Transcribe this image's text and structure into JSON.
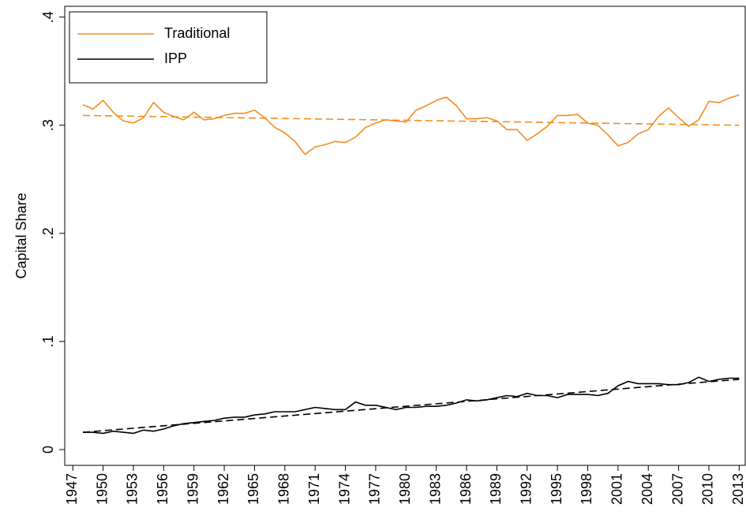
{
  "chart_data": {
    "type": "line",
    "y_label": "Capital Share",
    "x": [
      1948,
      1949,
      1950,
      1951,
      1952,
      1953,
      1954,
      1955,
      1956,
      1957,
      1958,
      1959,
      1960,
      1961,
      1962,
      1963,
      1964,
      1965,
      1966,
      1967,
      1968,
      1969,
      1970,
      1971,
      1972,
      1973,
      1974,
      1975,
      1976,
      1977,
      1978,
      1979,
      1980,
      1981,
      1982,
      1983,
      1984,
      1985,
      1986,
      1987,
      1988,
      1989,
      1990,
      1991,
      1992,
      1993,
      1994,
      1995,
      1996,
      1997,
      1998,
      1999,
      2000,
      2001,
      2002,
      2003,
      2004,
      2005,
      2006,
      2007,
      2008,
      2009,
      2010,
      2011,
      2012,
      2013
    ],
    "series": [
      {
        "name": "Traditional",
        "color": "#f58b1f",
        "values": [
          0.319,
          0.315,
          0.323,
          0.312,
          0.304,
          0.302,
          0.307,
          0.321,
          0.312,
          0.308,
          0.305,
          0.312,
          0.305,
          0.306,
          0.309,
          0.311,
          0.311,
          0.314,
          0.307,
          0.298,
          0.293,
          0.285,
          0.273,
          0.28,
          0.282,
          0.285,
          0.284,
          0.289,
          0.298,
          0.302,
          0.305,
          0.304,
          0.303,
          0.314,
          0.318,
          0.323,
          0.326,
          0.318,
          0.306,
          0.306,
          0.307,
          0.304,
          0.296,
          0.296,
          0.286,
          0.292,
          0.299,
          0.309,
          0.309,
          0.31,
          0.302,
          0.3,
          0.291,
          0.281,
          0.284,
          0.292,
          0.296,
          0.308,
          0.316,
          0.307,
          0.299,
          0.305,
          0.322,
          0.321,
          0.325,
          0.328
        ]
      },
      {
        "name": "IPP",
        "color": "#000000",
        "values": [
          0.016,
          0.016,
          0.015,
          0.017,
          0.016,
          0.015,
          0.018,
          0.017,
          0.019,
          0.022,
          0.024,
          0.025,
          0.026,
          0.027,
          0.029,
          0.03,
          0.03,
          0.032,
          0.033,
          0.035,
          0.035,
          0.035,
          0.037,
          0.039,
          0.038,
          0.037,
          0.037,
          0.044,
          0.041,
          0.041,
          0.039,
          0.037,
          0.039,
          0.039,
          0.04,
          0.04,
          0.041,
          0.043,
          0.046,
          0.045,
          0.046,
          0.048,
          0.05,
          0.049,
          0.052,
          0.05,
          0.05,
          0.048,
          0.051,
          0.051,
          0.051,
          0.05,
          0.052,
          0.059,
          0.063,
          0.061,
          0.061,
          0.061,
          0.06,
          0.06,
          0.062,
          0.067,
          0.063,
          0.065,
          0.066,
          0.066
        ]
      }
    ],
    "trend_lines": [
      {
        "color": "#f58b1f",
        "x": [
          1948,
          2013
        ],
        "values": [
          0.309,
          0.3
        ]
      },
      {
        "color": "#000000",
        "x": [
          1948,
          2013
        ],
        "values": [
          0.016,
          0.065
        ]
      }
    ],
    "xlim": [
      1946.2,
      2013.6
    ],
    "xticks": [
      1947,
      1950,
      1953,
      1956,
      1959,
      1962,
      1965,
      1968,
      1971,
      1974,
      1977,
      1980,
      1983,
      1986,
      1989,
      1992,
      1995,
      1998,
      2001,
      2004,
      2007,
      2010,
      2013
    ],
    "ylim": [
      -0.0146,
      0.41
    ],
    "yticks": [
      0,
      {
        "value": 0.1,
        "label": ".1"
      },
      {
        "value": 0.2,
        "label": ".2"
      },
      {
        "value": 0.3,
        "label": ".3"
      },
      {
        "value": 0.4,
        "label": ".4"
      }
    ],
    "grid": false,
    "legend": "top-left"
  }
}
